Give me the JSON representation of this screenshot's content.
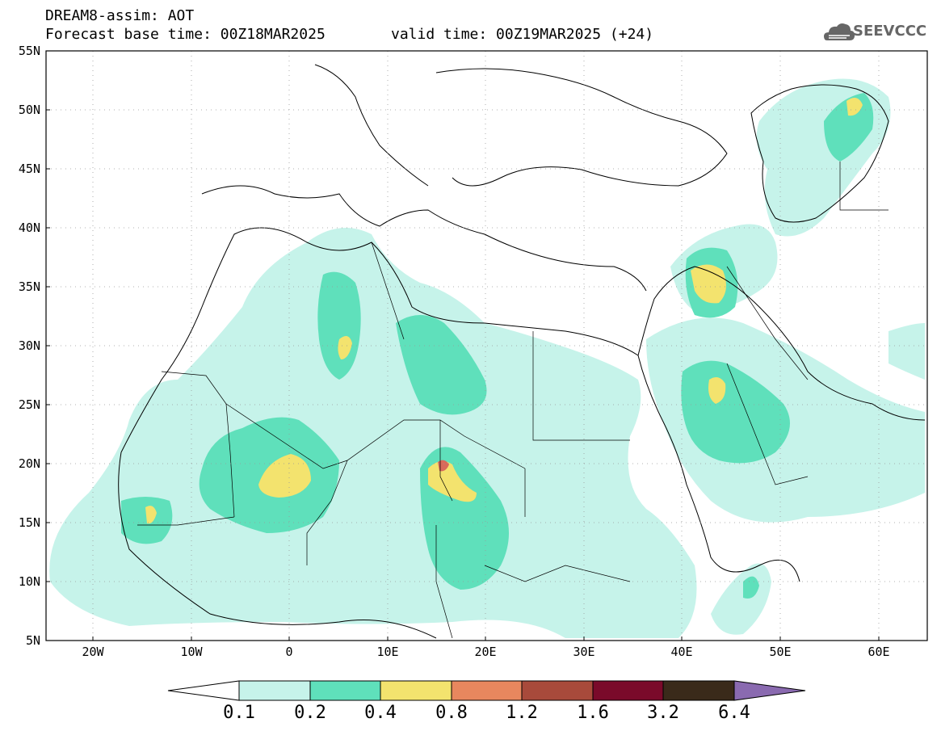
{
  "title": {
    "line1": "DREAM8-assim: AOT",
    "base_time": "Forecast base time: 00Z18MAR2025",
    "valid_time": "valid time: 00Z19MAR2025 (+24)"
  },
  "logo": {
    "text": "SEEVCCC",
    "icon": "cloud-icon"
  },
  "map": {
    "lat_labels": [
      "55N",
      "50N",
      "45N",
      "40N",
      "35N",
      "30N",
      "25N",
      "20N",
      "15N",
      "10N",
      "5N"
    ],
    "lon_labels": [
      "20W",
      "10W",
      "0",
      "10E",
      "20E",
      "30E",
      "40E",
      "50E",
      "60E"
    ]
  },
  "colorbar": {
    "labels": [
      "0.1",
      "0.2",
      "0.4",
      "0.8",
      "1.2",
      "1.6",
      "3.2",
      "6.4"
    ],
    "colors": [
      "#ffffff",
      "#c6f3ea",
      "#5fe0bb",
      "#f3e36e",
      "#e8875e",
      "#a84a3b",
      "#7a0a2a",
      "#3a2a1a",
      "#8a6ab0"
    ]
  },
  "aot_colors": {
    "light": "#c6f3ea",
    "medium": "#5fe0bb",
    "high": "#f3e36e",
    "veryhigh": "#d96a5a"
  }
}
